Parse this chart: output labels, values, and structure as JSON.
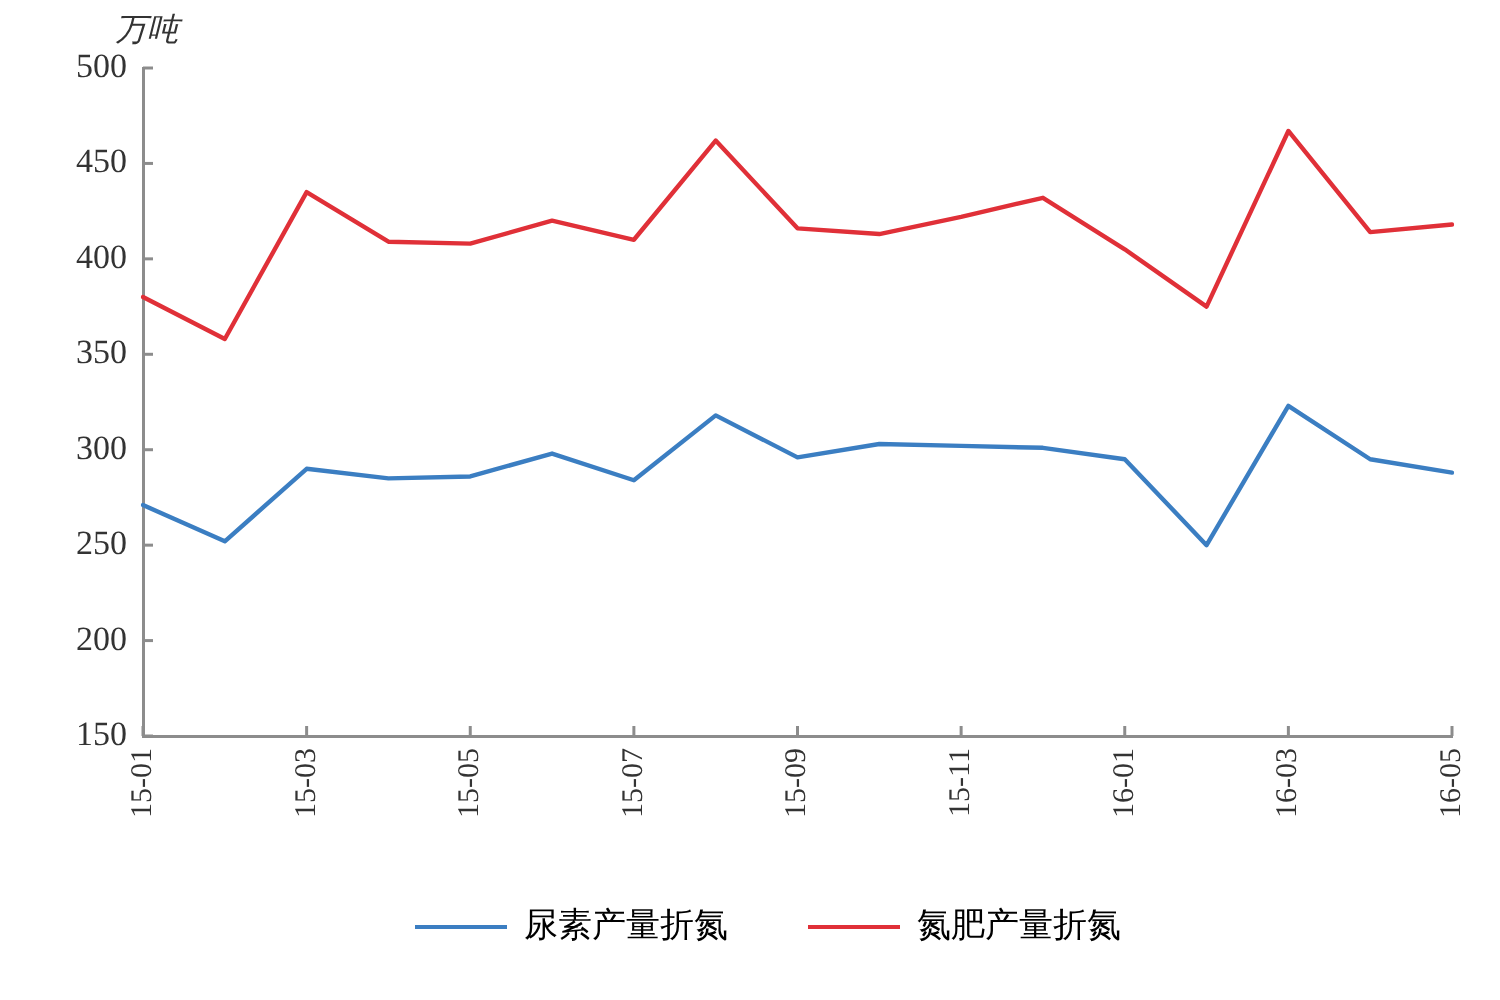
{
  "chart_data": {
    "type": "line",
    "ylabel": "万吨",
    "categories": [
      "15-01",
      null,
      "15-03",
      null,
      "15-05",
      null,
      "15-07",
      null,
      "15-09",
      null,
      "15-11",
      null,
      "16-01",
      null,
      "16-03",
      null,
      "16-05"
    ],
    "series": [
      {
        "name": "尿素产量折氮",
        "color": "#3b7ec2",
        "values": [
          271,
          252,
          290,
          285,
          286,
          298,
          284,
          318,
          296,
          303,
          302,
          301,
          295,
          250,
          323,
          295,
          288
        ]
      },
      {
        "name": "氮肥产量折氮",
        "color": "#e03038",
        "values": [
          380,
          358,
          435,
          409,
          408,
          420,
          410,
          462,
          416,
          413,
          422,
          432,
          405,
          375,
          467,
          414,
          418
        ]
      }
    ],
    "ylim": [
      150,
      500
    ],
    "yticks": [
      150,
      200,
      250,
      300,
      350,
      400,
      450,
      500
    ],
    "grid": false,
    "legend": "bottom",
    "marker": "none",
    "line_style": "solid"
  }
}
